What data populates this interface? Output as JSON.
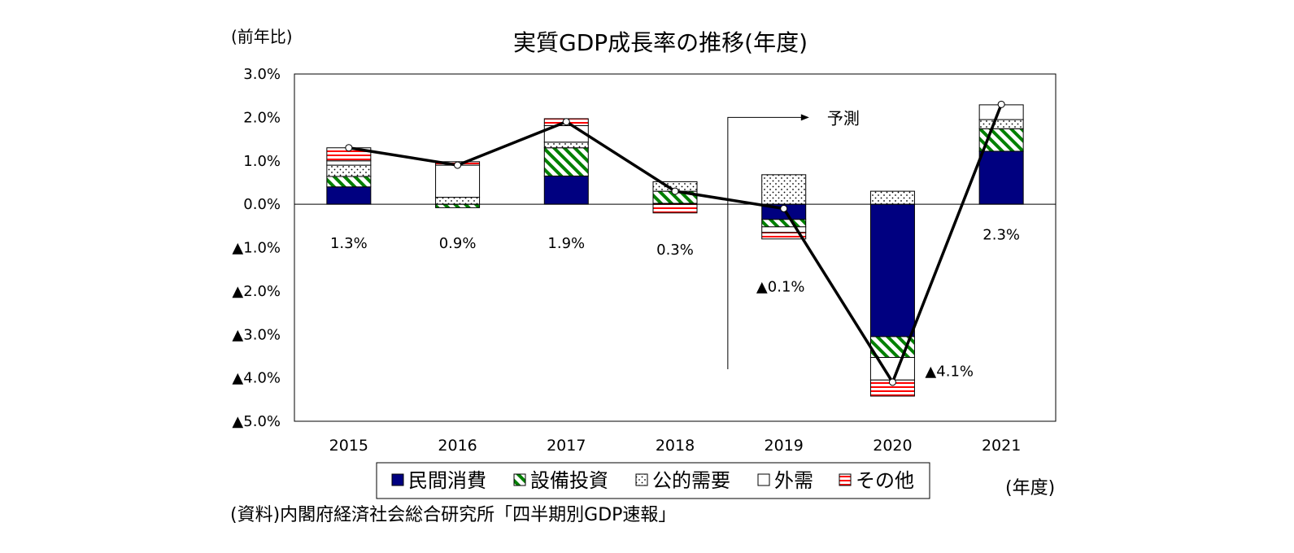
{
  "chart_data": {
    "type": "bar",
    "stacked": true,
    "title": "実質GDP成長率の推移(年度)",
    "ylabel": "(前年比)",
    "xlabel": "(年度)",
    "source": "(資料)内閣府経済社会総合研究所「四半期別GDP速報」",
    "forecast_label": "予測",
    "forecast_from": "2019",
    "categories": [
      "2015",
      "2016",
      "2017",
      "2018",
      "2019",
      "2020",
      "2021"
    ],
    "ylim": [
      -5.0,
      3.0
    ],
    "y_ticks": [
      {
        "value": 3.0,
        "label": "3.0%"
      },
      {
        "value": 2.0,
        "label": "2.0%"
      },
      {
        "value": 1.0,
        "label": "1.0%"
      },
      {
        "value": 0.0,
        "label": "0.0%"
      },
      {
        "value": -1.0,
        "label": "▲1.0%"
      },
      {
        "value": -2.0,
        "label": "▲2.0%"
      },
      {
        "value": -3.0,
        "label": "▲3.0%"
      },
      {
        "value": -4.0,
        "label": "▲4.0%"
      },
      {
        "value": -5.0,
        "label": "▲5.0%"
      }
    ],
    "grid": false,
    "legend_position": "bottom",
    "series": [
      {
        "name": "民間消費",
        "color": "#000080",
        "pattern": "solid",
        "values": [
          0.4,
          0.0,
          0.65,
          0.02,
          -0.35,
          -3.05,
          1.22
        ]
      },
      {
        "name": "設備投資",
        "color": "#008000",
        "pattern": "diagonal",
        "values": [
          0.24,
          -0.08,
          0.65,
          0.28,
          -0.17,
          -0.48,
          0.52
        ]
      },
      {
        "name": "公的需要",
        "color": "#000000",
        "pattern": "dots",
        "values": [
          0.26,
          0.16,
          0.13,
          0.22,
          0.68,
          0.3,
          0.21
        ]
      },
      {
        "name": "外需",
        "color": "#000000",
        "pattern": "white",
        "values": [
          0.1,
          0.74,
          0.38,
          0.0,
          -0.13,
          -0.52,
          0.34
        ]
      },
      {
        "name": "その他",
        "color": "#ff0000",
        "pattern": "hlines",
        "values": [
          0.3,
          0.08,
          0.16,
          -0.2,
          -0.15,
          -0.37,
          0.0
        ]
      }
    ],
    "line": {
      "name": "実質GDP",
      "values": [
        1.3,
        0.9,
        1.9,
        0.3,
        -0.1,
        -4.1,
        2.3
      ]
    },
    "data_labels": [
      {
        "category": "2015",
        "text": "1.3%",
        "y": -0.9
      },
      {
        "category": "2016",
        "text": "0.9%",
        "y": -0.9
      },
      {
        "category": "2017",
        "text": "1.9%",
        "y": -0.9
      },
      {
        "category": "2018",
        "text": "0.3%",
        "y": -1.05
      },
      {
        "category": "2019",
        "text": "▲0.1%",
        "y": -1.9
      },
      {
        "category": "2020",
        "text": "▲4.1%",
        "y": -3.85
      },
      {
        "category": "2021",
        "text": "2.3%",
        "y": -0.7
      }
    ]
  }
}
